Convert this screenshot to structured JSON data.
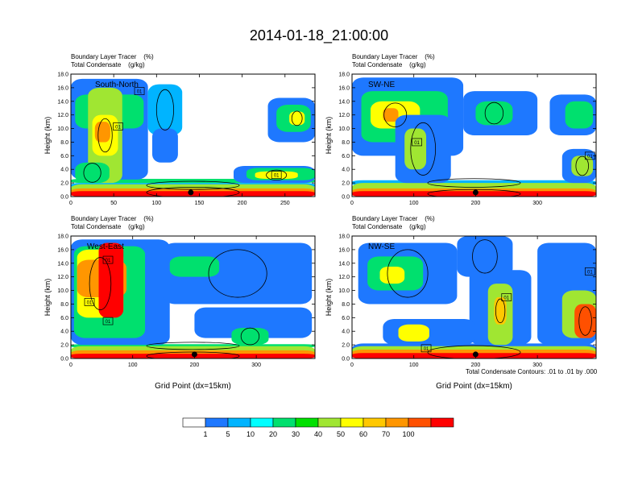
{
  "figure": {
    "title": "2014-01-18_21:00:00",
    "contour_note": "Total Condensate Contours: .01 to .01 by .000"
  },
  "colors": [
    "#ffffff",
    "#1e78ff",
    "#00b4ff",
    "#00ffff",
    "#00e06e",
    "#00e000",
    "#a0e632",
    "#e6dc32",
    "#ffff00",
    "#ffc800",
    "#ff9600",
    "#ff5000",
    "#ff0000"
  ],
  "chart_data": [
    {
      "type": "heatmap",
      "panel_label": "South-North",
      "title_line1": "Boundary Layer Tracer    (%)",
      "title_line2": "Total Condensate    (g/kg)",
      "ylabel": "Height (km)",
      "xlabel": "",
      "xlim": [
        0,
        285
      ],
      "ylim": [
        0,
        18
      ],
      "xticks": [
        0,
        50,
        100,
        150,
        200,
        250
      ],
      "yticks": [
        "0.0",
        "2.0",
        "4.0",
        "6.0",
        "8.0",
        "10.0",
        "12.0",
        "14.0",
        "16.0",
        "18.0"
      ],
      "marker_x": 140,
      "contour_labels": [
        {
          "x": 80,
          "y": 15.5,
          "text": "01"
        },
        {
          "x": 55,
          "y": 10.3,
          "text": "01"
        },
        {
          "x": 240,
          "y": 3.2,
          "text": "01"
        }
      ],
      "fields": [
        {
          "v": 1,
          "x": 0,
          "y": 0,
          "w": 285,
          "h": 1.3
        },
        {
          "v": 5,
          "x": 0,
          "y": 1.3,
          "w": 285,
          "h": 0.7
        },
        {
          "v": 20,
          "x": 0,
          "y": 2.0,
          "w": 285,
          "h": 0.6
        },
        {
          "v": 30,
          "x": 0,
          "y": 0,
          "w": 285,
          "h": 1.8
        },
        {
          "v": 60,
          "x": 0,
          "y": 0,
          "w": 285,
          "h": 1.2
        },
        {
          "v": 90,
          "x": 0,
          "y": 0,
          "w": 285,
          "h": 0.8
        },
        {
          "v": 1,
          "x": 0,
          "y": 2.5,
          "w": 90,
          "h": 14.8
        },
        {
          "v": 5,
          "x": 90,
          "y": 9,
          "w": 40,
          "h": 7.5
        },
        {
          "v": 20,
          "x": 5,
          "y": 10,
          "w": 80,
          "h": 5
        },
        {
          "v": 30,
          "x": 20,
          "y": 2,
          "w": 40,
          "h": 14
        },
        {
          "v": 40,
          "x": 25,
          "y": 6,
          "w": 30,
          "h": 6
        },
        {
          "v": 60,
          "x": 28,
          "y": 8,
          "w": 18,
          "h": 3
        },
        {
          "v": 1,
          "x": 95,
          "y": 5,
          "w": 30,
          "h": 5
        },
        {
          "v": 20,
          "x": 5,
          "y": 2,
          "w": 40,
          "h": 3
        },
        {
          "v": 1,
          "x": 230,
          "y": 8,
          "w": 55,
          "h": 6.5
        },
        {
          "v": 20,
          "x": 240,
          "y": 9.5,
          "w": 40,
          "h": 4
        },
        {
          "v": 40,
          "x": 255,
          "y": 10.5,
          "w": 18,
          "h": 2
        },
        {
          "v": 1,
          "x": 190,
          "y": 2,
          "w": 95,
          "h": 2.5
        },
        {
          "v": 20,
          "x": 205,
          "y": 2.4,
          "w": 80,
          "h": 1.8
        },
        {
          "v": 40,
          "x": 215,
          "y": 2.6,
          "w": 50,
          "h": 1.1
        }
      ]
    },
    {
      "type": "heatmap",
      "panel_label": "SW-NE",
      "title_line1": "Boundary Layer Tracer    (%)",
      "title_line2": "Total Condensate    (g/kg)",
      "ylabel": "Height (km)",
      "xlabel": "",
      "xlim": [
        0,
        395
      ],
      "ylim": [
        0,
        18
      ],
      "xticks": [
        0,
        100,
        200,
        300
      ],
      "yticks": [
        "0.0",
        "2.0",
        "4.0",
        "6.0",
        "8.0",
        "10.0",
        "12.0",
        "14.0",
        "16.0",
        "18.0"
      ],
      "marker_x": 200,
      "contour_labels": [
        {
          "x": 105,
          "y": 8,
          "text": "01"
        },
        {
          "x": 385,
          "y": 6,
          "text": "01"
        }
      ],
      "fields": [
        {
          "v": 1,
          "x": 0,
          "y": 0,
          "w": 395,
          "h": 1.6
        },
        {
          "v": 5,
          "x": 0,
          "y": 1.6,
          "w": 395,
          "h": 0.8
        },
        {
          "v": 30,
          "x": 0,
          "y": 0,
          "w": 395,
          "h": 2.0
        },
        {
          "v": 60,
          "x": 0,
          "y": 0,
          "w": 395,
          "h": 1.2
        },
        {
          "v": 90,
          "x": 0,
          "y": 0,
          "w": 395,
          "h": 0.8
        },
        {
          "v": 1,
          "x": 0,
          "y": 6,
          "w": 180,
          "h": 11.5
        },
        {
          "v": 20,
          "x": 15,
          "y": 8,
          "w": 140,
          "h": 7.5
        },
        {
          "v": 40,
          "x": 30,
          "y": 10,
          "w": 80,
          "h": 4
        },
        {
          "v": 60,
          "x": 50,
          "y": 11,
          "w": 25,
          "h": 2
        },
        {
          "v": 1,
          "x": 180,
          "y": 9,
          "w": 120,
          "h": 6.5
        },
        {
          "v": 20,
          "x": 200,
          "y": 10.5,
          "w": 60,
          "h": 3.5
        },
        {
          "v": 1,
          "x": 320,
          "y": 9,
          "w": 75,
          "h": 6
        },
        {
          "v": 20,
          "x": 345,
          "y": 10,
          "w": 45,
          "h": 4
        },
        {
          "v": 1,
          "x": 70,
          "y": 2,
          "w": 90,
          "h": 10
        },
        {
          "v": 30,
          "x": 85,
          "y": 4,
          "w": 35,
          "h": 6
        },
        {
          "v": 1,
          "x": 340,
          "y": 2,
          "w": 55,
          "h": 5
        },
        {
          "v": 30,
          "x": 355,
          "y": 3,
          "w": 35,
          "h": 3
        }
      ]
    },
    {
      "type": "heatmap",
      "panel_label": "West-East",
      "title_line1": "Boundary Layer Tracer    (%)",
      "title_line2": "Total Condensate    (g/kg)",
      "ylabel": "Height (km)",
      "xlabel": "Grid Point (dx=15km)",
      "xlim": [
        0,
        395
      ],
      "ylim": [
        0,
        18
      ],
      "xticks": [
        0,
        100,
        200,
        300
      ],
      "yticks": [
        "0.0",
        "2.0",
        "4.0",
        "6.0",
        "8.0",
        "10.0",
        "12.0",
        "14.0",
        "16.0",
        "18.0"
      ],
      "marker_x": 200,
      "contour_labels": [
        {
          "x": 60,
          "y": 14.5,
          "text": "01"
        },
        {
          "x": 30,
          "y": 8.3,
          "text": "01"
        },
        {
          "x": 60,
          "y": 5.5,
          "text": "01"
        }
      ],
      "fields": [
        {
          "v": 1,
          "x": 0,
          "y": 0,
          "w": 395,
          "h": 1.6
        },
        {
          "v": 20,
          "x": 0,
          "y": 1.6,
          "w": 395,
          "h": 0.5
        },
        {
          "v": 30,
          "x": 0,
          "y": 0,
          "w": 395,
          "h": 1.8
        },
        {
          "v": 60,
          "x": 0,
          "y": 0,
          "w": 395,
          "h": 1.2
        },
        {
          "v": 90,
          "x": 0,
          "y": 0,
          "w": 395,
          "h": 0.7
        },
        {
          "v": 1,
          "x": 0,
          "y": 2,
          "w": 160,
          "h": 15.5
        },
        {
          "v": 20,
          "x": 5,
          "y": 3,
          "w": 115,
          "h": 13.5
        },
        {
          "v": 40,
          "x": 10,
          "y": 6,
          "w": 75,
          "h": 10
        },
        {
          "v": 60,
          "x": 10,
          "y": 9,
          "w": 80,
          "h": 5.5
        },
        {
          "v": 90,
          "x": 45,
          "y": 6,
          "w": 40,
          "h": 11
        },
        {
          "v": 1,
          "x": 150,
          "y": 8,
          "w": 240,
          "h": 9
        },
        {
          "v": 20,
          "x": 160,
          "y": 12,
          "w": 80,
          "h": 3
        },
        {
          "v": 1,
          "x": 200,
          "y": 3,
          "w": 190,
          "h": 4.5
        },
        {
          "v": 20,
          "x": 260,
          "y": 2,
          "w": 60,
          "h": 2.5
        }
      ]
    },
    {
      "type": "heatmap",
      "panel_label": "NW-SE",
      "title_line1": "Boundary Layer Tracer    (%)",
      "title_line2": "Total Condensate    (g/kg)",
      "ylabel": "Height (km)",
      "xlabel": "Grid Point (dx=15km)",
      "xlim": [
        0,
        395
      ],
      "ylim": [
        0,
        18
      ],
      "xticks": [
        0,
        100,
        200,
        300
      ],
      "yticks": [
        "0.0",
        "2.0",
        "4.0",
        "6.0",
        "8.0",
        "10.0",
        "12.0",
        "14.0",
        "16.0",
        "18.0"
      ],
      "marker_x": 200,
      "contour_labels": [
        {
          "x": 250,
          "y": 9,
          "text": "01"
        },
        {
          "x": 385,
          "y": 12.8,
          "text": "01"
        },
        {
          "x": 120,
          "y": 1.5,
          "text": "01"
        }
      ],
      "fields": [
        {
          "v": 1,
          "x": 0,
          "y": 0,
          "w": 395,
          "h": 2.2
        },
        {
          "v": 30,
          "x": 0,
          "y": 0,
          "w": 395,
          "h": 1.8
        },
        {
          "v": 60,
          "x": 0,
          "y": 0,
          "w": 395,
          "h": 1.3
        },
        {
          "v": 90,
          "x": 0,
          "y": 0,
          "w": 395,
          "h": 0.8
        },
        {
          "v": 1,
          "x": 10,
          "y": 8,
          "w": 160,
          "h": 9
        },
        {
          "v": 20,
          "x": 25,
          "y": 10,
          "w": 90,
          "h": 5
        },
        {
          "v": 40,
          "x": 45,
          "y": 11,
          "w": 40,
          "h": 2.5
        },
        {
          "v": 1,
          "x": 170,
          "y": 12,
          "w": 90,
          "h": 6
        },
        {
          "v": 1,
          "x": 190,
          "y": 2,
          "w": 100,
          "h": 11
        },
        {
          "v": 30,
          "x": 220,
          "y": 2,
          "w": 40,
          "h": 9
        },
        {
          "v": 50,
          "x": 230,
          "y": 5,
          "w": 20,
          "h": 4
        },
        {
          "v": 1,
          "x": 300,
          "y": 2,
          "w": 95,
          "h": 15
        },
        {
          "v": 30,
          "x": 340,
          "y": 3,
          "w": 55,
          "h": 7
        },
        {
          "v": 70,
          "x": 360,
          "y": 3,
          "w": 35,
          "h": 5
        },
        {
          "v": 1,
          "x": 50,
          "y": 2,
          "w": 150,
          "h": 3.8
        },
        {
          "v": 40,
          "x": 75,
          "y": 2.5,
          "w": 50,
          "h": 2.5
        }
      ]
    }
  ],
  "colorbar": {
    "labels": [
      "1",
      "5",
      "10",
      "20",
      "30",
      "40",
      "50",
      "60",
      "70",
      "100"
    ],
    "colors": [
      "#ffffff",
      "#1e78ff",
      "#00b4ff",
      "#00ffff",
      "#00e06e",
      "#00e000",
      "#a0e632",
      "#ffff00",
      "#ffc800",
      "#ff9600",
      "#ff5000",
      "#ff0000"
    ]
  }
}
